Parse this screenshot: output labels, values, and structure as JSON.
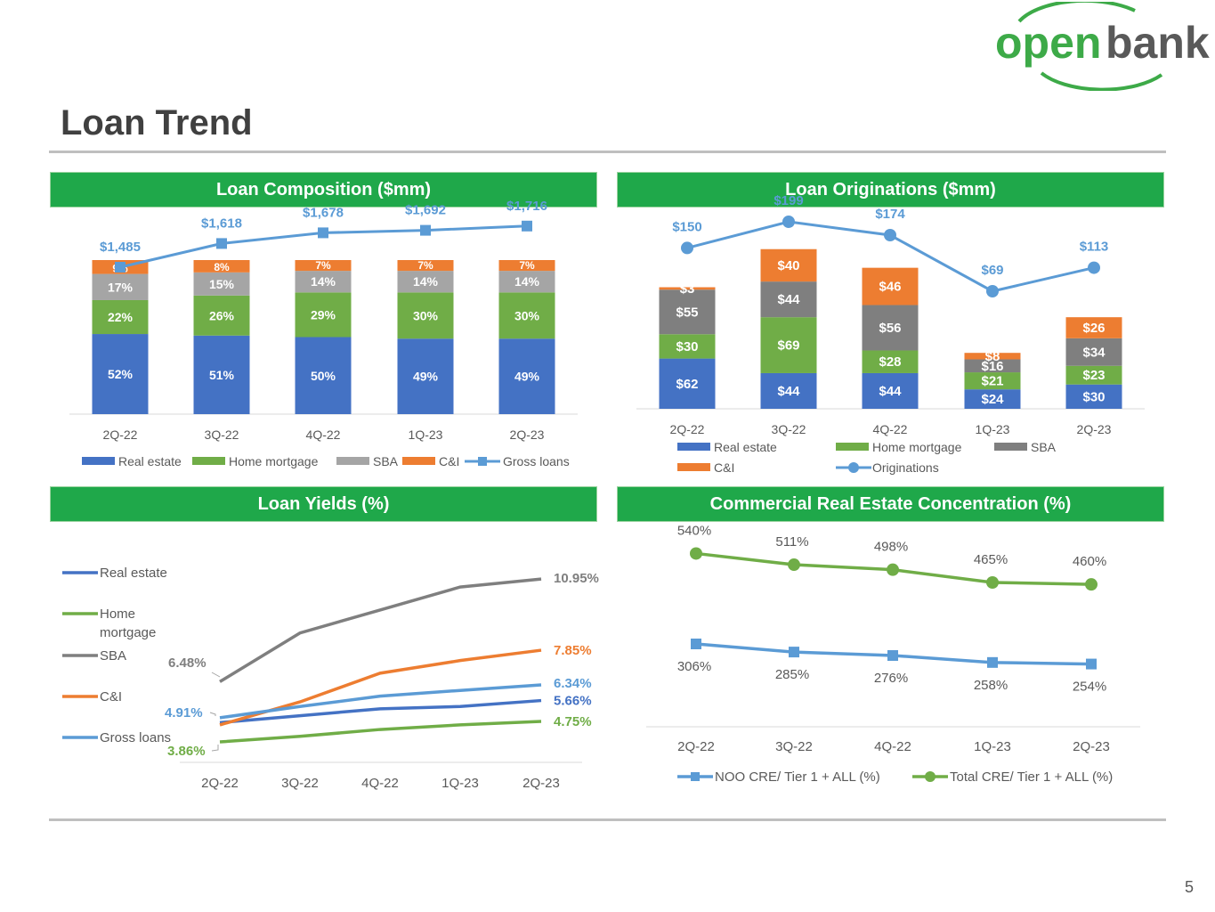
{
  "brand": {
    "logo_text_open": "open",
    "logo_text_bank": "bank",
    "green": "#3daa48",
    "gray": "#595959"
  },
  "page": {
    "title": "Loan Trend",
    "number": "5"
  },
  "colors": {
    "header_green": "#1fa84a",
    "real_estate": "#4472c4",
    "home_mortgage": "#70ad47",
    "sba": "#a5a5a5",
    "sba_dark": "#7f7f7f",
    "ci": "#ed7d31",
    "gross_loans": "#5b9bd5",
    "originations": "#5b9bd5",
    "yield_real_estate": "#4472c4",
    "yield_home_mortgage": "#70ad47",
    "yield_sba": "#7f7f7f",
    "yield_ci": "#ed7d31",
    "yield_gross_loans": "#5b9bd5",
    "noo_cre": "#5b9bd5",
    "total_cre": "#70ad47"
  },
  "panels": {
    "composition": {
      "title": "Loan Composition ($mm)"
    },
    "originations": {
      "title": "Loan Originations ($mm)"
    },
    "yields": {
      "title": "Loan Yields (%)"
    },
    "cre": {
      "title": "Commercial Real Estate Concentration (%)"
    }
  },
  "chart_data": [
    {
      "id": "composition",
      "type": "bar",
      "stacked": true,
      "title": "Loan Composition ($mm)",
      "categories": [
        "2Q-22",
        "3Q-22",
        "4Q-22",
        "1Q-23",
        "2Q-23"
      ],
      "series": [
        {
          "name": "Real estate",
          "values": [
            52,
            51,
            50,
            49,
            49
          ],
          "labels": [
            "52%",
            "51%",
            "50%",
            "49%",
            "49%"
          ]
        },
        {
          "name": "Home mortgage",
          "values": [
            22,
            26,
            29,
            30,
            30
          ],
          "labels": [
            "22%",
            "26%",
            "29%",
            "30%",
            "30%"
          ]
        },
        {
          "name": "SBA",
          "values": [
            17,
            15,
            14,
            14,
            14
          ],
          "labels": [
            "17%",
            "15%",
            "14%",
            "14%",
            "14%"
          ]
        },
        {
          "name": "C&I",
          "values": [
            9,
            8,
            7,
            7,
            7
          ],
          "labels": [
            "9%",
            "8%",
            "7%",
            "7%",
            "7%"
          ]
        }
      ],
      "line": {
        "name": "Gross loans",
        "values": [
          1485,
          1618,
          1678,
          1692,
          1716
        ],
        "labels": [
          "$1,485",
          "$1,618",
          "$1,678",
          "$1,692",
          "$1,716"
        ]
      },
      "legend": [
        "Real estate",
        "Home mortgage",
        "SBA",
        "C&I",
        "Gross loans"
      ]
    },
    {
      "id": "originations",
      "type": "bar",
      "stacked": true,
      "title": "Loan Originations ($mm)",
      "categories": [
        "2Q-22",
        "3Q-22",
        "4Q-22",
        "1Q-23",
        "2Q-23"
      ],
      "series": [
        {
          "name": "Real estate",
          "values": [
            62,
            44,
            44,
            24,
            30
          ],
          "labels": [
            "$62",
            "$44",
            "$44",
            "$24",
            "$30"
          ]
        },
        {
          "name": "Home mortgage",
          "values": [
            30,
            69,
            28,
            21,
            23
          ],
          "labels": [
            "$30",
            "$69",
            "$28",
            "$21",
            "$23"
          ]
        },
        {
          "name": "SBA",
          "values": [
            55,
            44,
            56,
            16,
            34
          ],
          "labels": [
            "$55",
            "$44",
            "$56",
            "$16",
            "$34"
          ]
        },
        {
          "name": "C&I",
          "values": [
            3,
            40,
            46,
            8,
            26
          ],
          "labels": [
            "$3",
            "$40",
            "$46",
            "$8",
            "$26"
          ]
        }
      ],
      "line": {
        "name": "Originations",
        "values": [
          150,
          199,
          174,
          69,
          113
        ],
        "labels": [
          "$150",
          "$199",
          "$174",
          "$69",
          "$113"
        ]
      },
      "legend": [
        "Real estate",
        "Home mortgage",
        "SBA",
        "C&I",
        "Originations"
      ]
    },
    {
      "id": "yields",
      "type": "line",
      "title": "Loan Yields (%)",
      "categories": [
        "2Q-22",
        "3Q-22",
        "4Q-22",
        "1Q-23",
        "2Q-23"
      ],
      "series": [
        {
          "name": "Real estate",
          "values": [
            4.7,
            5.0,
            5.3,
            5.4,
            5.66
          ]
        },
        {
          "name": "Home mortgage",
          "values": [
            3.86,
            4.1,
            4.4,
            4.6,
            4.75
          ]
        },
        {
          "name": "SBA",
          "values": [
            6.48,
            8.6,
            9.6,
            10.6,
            10.95
          ]
        },
        {
          "name": "C&I",
          "values": [
            4.6,
            5.6,
            6.85,
            7.4,
            7.85
          ]
        },
        {
          "name": "Gross loans",
          "values": [
            4.91,
            5.4,
            5.85,
            6.1,
            6.34
          ]
        }
      ],
      "data_labels": {
        "first": {
          "SBA": "6.48%",
          "Gross loans": "4.91%",
          "Home mortgage": "3.86%"
        },
        "last": {
          "SBA": "10.95%",
          "C&I": "7.85%",
          "Gross loans": "6.34%",
          "Real estate": "5.66%",
          "Home mortgage": "4.75%"
        }
      },
      "legend": [
        "Real estate",
        "Home mortgage",
        "SBA",
        "C&I",
        "Gross loans"
      ],
      "ylim": [
        3,
        11.5
      ]
    },
    {
      "id": "cre",
      "type": "line",
      "title": "Commercial Real Estate Concentration (%)",
      "categories": [
        "2Q-22",
        "3Q-22",
        "4Q-22",
        "1Q-23",
        "2Q-23"
      ],
      "series": [
        {
          "name": "NOO CRE/ Tier 1 + ALL (%)",
          "values": [
            306,
            285,
            276,
            258,
            254
          ],
          "labels": [
            "306%",
            "285%",
            "276%",
            "258%",
            "254%"
          ]
        },
        {
          "name": "Total CRE/ Tier 1 + ALL (%)",
          "values": [
            540,
            511,
            498,
            465,
            460
          ],
          "labels": [
            "540%",
            "511%",
            "498%",
            "465%",
            "460%"
          ]
        }
      ],
      "legend": [
        "NOO CRE/ Tier 1 + ALL (%)",
        "Total CRE/ Tier 1 + ALL (%)"
      ],
      "ylim": [
        180,
        600
      ]
    }
  ]
}
